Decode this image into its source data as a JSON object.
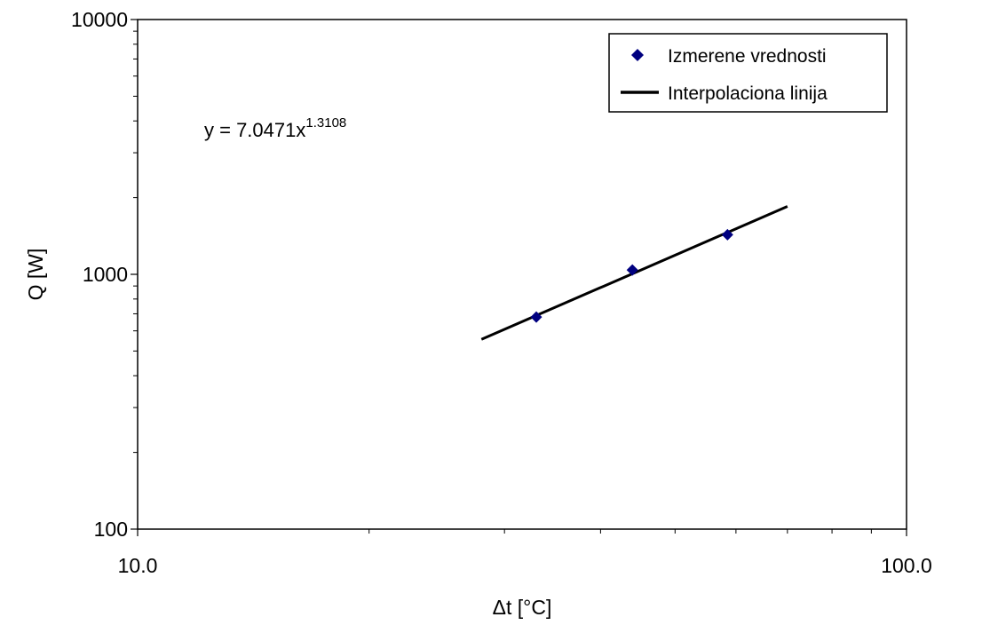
{
  "chart_data": {
    "type": "scatter",
    "x_scale": "log",
    "y_scale": "log",
    "xlim": [
      10,
      100
    ],
    "ylim": [
      100,
      10000
    ],
    "x_tick_labels": [
      {
        "value": 10,
        "label": "10.0"
      },
      {
        "value": 100,
        "label": "100.0"
      }
    ],
    "x_minor_ticks": [
      20,
      30,
      40,
      50,
      60,
      70,
      80,
      90
    ],
    "y_tick_labels": [
      {
        "value": 100,
        "label": "100"
      },
      {
        "value": 1000,
        "label": "1000"
      },
      {
        "value": 10000,
        "label": "10000"
      }
    ],
    "y_minor_ticks": [
      200,
      300,
      400,
      500,
      600,
      700,
      800,
      900,
      2000,
      3000,
      4000,
      5000,
      6000,
      7000,
      8000,
      9000
    ],
    "xlabel": "Δt [°C]",
    "ylabel": "Q [W]",
    "grid": false,
    "legend_position": "top-right",
    "series": [
      {
        "name": "Izmerene vrednosti",
        "kind": "points",
        "marker": "diamond",
        "color": "#000080",
        "x": [
          33.0,
          44.0,
          58.5
        ],
        "y": [
          680,
          1040,
          1430
        ]
      },
      {
        "name": "Interpolaciona linija",
        "kind": "line",
        "color": "#000000",
        "fit": {
          "a": 7.0471,
          "b": 1.3108
        },
        "x": [
          28,
          70
        ]
      }
    ],
    "equation": {
      "base": "y = 7.0471x",
      "exponent": "1.3108"
    }
  }
}
